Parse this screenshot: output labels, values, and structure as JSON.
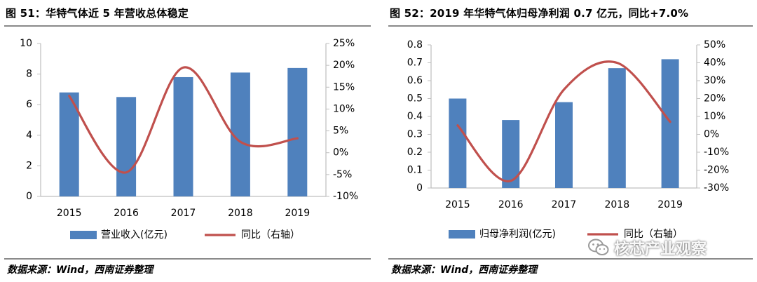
{
  "panels": [
    {
      "title": "图 51：华特气体近 5 年营收总体稳定",
      "source": "数据来源：Wind，西南证券整理"
    },
    {
      "title": "图 52：2019 年华特气体归母净利润 0.7 亿元，同比+7.0%",
      "source": "数据来源：Wind，西南证券整理"
    }
  ],
  "watermark": {
    "text": "核芯产业观察",
    "icon": "wechat-icon"
  },
  "colors": {
    "bar": "#4F81BD",
    "line": "#C0504D",
    "axis": "#bfbfbf"
  },
  "chart_data": [
    {
      "type": "bar",
      "categories": [
        "2015",
        "2016",
        "2017",
        "2018",
        "2019"
      ],
      "series": [
        {
          "name": "营业收入(亿元)",
          "type": "bar",
          "axis": "left",
          "values": [
            6.8,
            6.5,
            7.8,
            8.1,
            8.4
          ]
        },
        {
          "name": "同比（右轴）",
          "type": "line",
          "axis": "right",
          "values": [
            13,
            -4.5,
            19.5,
            2.5,
            3.3
          ]
        }
      ],
      "yleft": {
        "ticks": [
          "0",
          "2",
          "4",
          "6",
          "8",
          "10"
        ],
        "ylim": [
          0,
          10
        ]
      },
      "yright": {
        "ticks": [
          "-10%",
          "-5%",
          "0%",
          "5%",
          "10%",
          "15%",
          "20%",
          "25%"
        ],
        "ylim": [
          -10,
          25
        ]
      },
      "legend": "bottom"
    },
    {
      "type": "bar",
      "categories": [
        "2015",
        "2016",
        "2017",
        "2018",
        "2019"
      ],
      "series": [
        {
          "name": "归母净利润(亿元)",
          "type": "bar",
          "axis": "left",
          "values": [
            0.5,
            0.38,
            0.48,
            0.67,
            0.72
          ]
        },
        {
          "name": "同比（右轴）",
          "type": "line",
          "axis": "right",
          "values": [
            5,
            -26,
            25,
            40,
            7
          ]
        }
      ],
      "yleft": {
        "ticks": [
          "0",
          "0.1",
          "0.2",
          "0.3",
          "0.4",
          "0.5",
          "0.6",
          "0.7",
          "0.8"
        ],
        "ylim": [
          0,
          0.8
        ]
      },
      "yright": {
        "ticks": [
          "-30%",
          "-20%",
          "-10%",
          "0%",
          "10%",
          "20%",
          "30%",
          "40%",
          "50%"
        ],
        "ylim": [
          -30,
          50
        ]
      },
      "legend": "bottom"
    }
  ]
}
